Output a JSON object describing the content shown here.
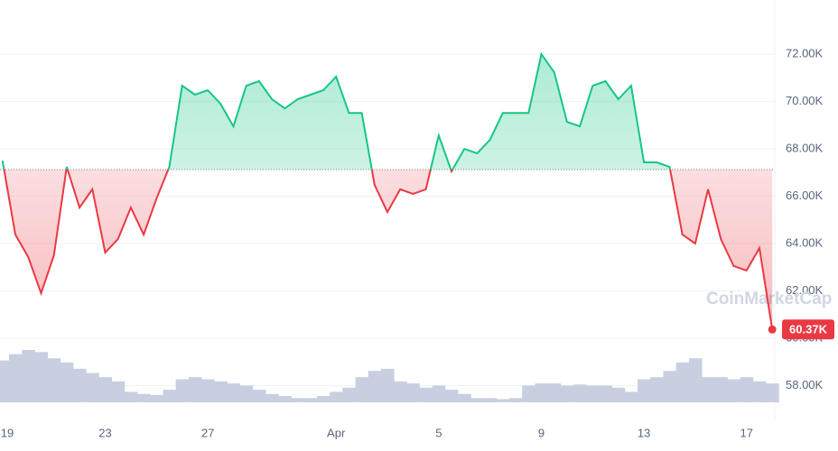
{
  "chart_data": {
    "type": "line",
    "x": [
      0,
      0.5,
      1,
      1.5,
      2,
      2.5,
      3,
      3.5,
      4,
      4.5,
      5,
      5.5,
      6,
      6.5,
      7,
      7.5,
      8,
      8.5,
      9,
      9.5,
      10,
      10.5,
      11,
      11.5,
      12,
      12.5,
      13,
      13.5,
      14,
      14.5,
      15,
      15.5,
      16,
      16.5,
      17,
      17.5,
      18,
      18.5,
      19,
      19.5,
      20,
      20.5,
      21,
      21.5,
      22,
      22.5,
      23,
      23.5,
      24,
      24.5,
      25,
      25.5,
      26,
      26.5,
      27,
      27.5,
      28,
      28.5,
      29,
      29.5,
      30
    ],
    "values": [
      67500,
      64380,
      63430,
      61900,
      63500,
      67240,
      65520,
      66290,
      63620,
      64190,
      65520,
      64380,
      65900,
      67240,
      70670,
      70290,
      70480,
      69900,
      68950,
      70670,
      70860,
      70100,
      69710,
      70100,
      70290,
      70480,
      71050,
      69520,
      69520,
      66480,
      65330,
      66290,
      66100,
      66290,
      68570,
      67050,
      68000,
      67810,
      68380,
      69520,
      69520,
      69520,
      72000,
      71240,
      69140,
      68950,
      70670,
      70860,
      70100,
      70670,
      67430,
      67430,
      67240,
      64380,
      64000,
      66290,
      64190,
      63050,
      62860,
      63810,
      60370
    ],
    "last_value_label": "60.37K",
    "volume": [
      40,
      46,
      50,
      48,
      42,
      38,
      32,
      28,
      24,
      20,
      10,
      8,
      7,
      12,
      22,
      24,
      22,
      20,
      18,
      16,
      12,
      8,
      6,
      4,
      4,
      6,
      10,
      14,
      24,
      30,
      32,
      20,
      18,
      14,
      16,
      12,
      8,
      4,
      4,
      3,
      4,
      16,
      18,
      18,
      16,
      17,
      16,
      16,
      14,
      10,
      22,
      24,
      30,
      38,
      42,
      24,
      24,
      22,
      24,
      20,
      18
    ],
    "baseline": 67124,
    "up_color": "#16c784",
    "down_color": "#ea3943",
    "volume_color": "#c8cfe0",
    "xlim": [
      -0.1,
      30.1
    ],
    "xticks": [
      {
        "value": 0,
        "label": "19"
      },
      {
        "value": 4,
        "label": "23"
      },
      {
        "value": 8,
        "label": "27"
      },
      {
        "value": 13,
        "label": "Apr"
      },
      {
        "value": 17,
        "label": "5"
      },
      {
        "value": 21,
        "label": "9"
      },
      {
        "value": 25,
        "label": "13"
      },
      {
        "value": 29,
        "label": "17"
      }
    ],
    "ylim": [
      56570,
      74290
    ],
    "yticks": [
      {
        "value": 72000,
        "label": "72.00K"
      },
      {
        "value": 70000,
        "label": "70.00K"
      },
      {
        "value": 68000,
        "label": "68.00K"
      },
      {
        "value": 66000,
        "label": "66.00K"
      },
      {
        "value": 64000,
        "label": "64.00K"
      },
      {
        "value": 62000,
        "label": "62.00K"
      },
      {
        "value": 60000,
        "label": "60.00K"
      },
      {
        "value": 58000,
        "label": "58.00K"
      }
    ],
    "grid": true,
    "watermark": "CoinMarketCap"
  }
}
